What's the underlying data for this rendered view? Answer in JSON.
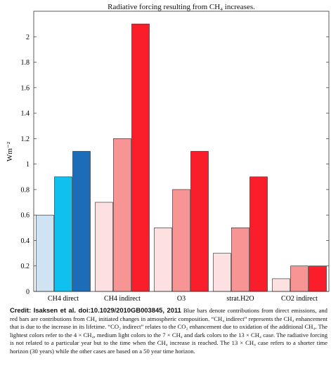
{
  "chart_data": {
    "type": "bar",
    "title": "Radiative forcing resulting from CH₄ increases.",
    "ylabel": "Wm⁻²",
    "xlabel": "",
    "categories": [
      "CH4 direct",
      "CH4 indirect",
      "O3",
      "strat.H2O",
      "CO2 indirect"
    ],
    "ylim": [
      0,
      2.2
    ],
    "yticks": [
      0,
      0.2,
      0.4,
      0.6,
      0.8,
      1,
      1.2,
      1.4,
      1.6,
      1.8,
      2
    ],
    "grid": false,
    "bars": [
      {
        "category": "CH4 direct",
        "values": [
          0.6,
          0.9,
          1.1
        ],
        "colors": [
          "#cfe3f2",
          "#10c0ee",
          "#1d6cb8"
        ]
      },
      {
        "category": "CH4 indirect",
        "values": [
          0.7,
          1.2,
          2.1
        ],
        "colors": [
          "#fde0e0",
          "#f79494",
          "#fa1e2b"
        ]
      },
      {
        "category": "O3",
        "values": [
          0.5,
          0.8,
          1.1
        ],
        "colors": [
          "#fde0e0",
          "#f79494",
          "#fa1e2b"
        ]
      },
      {
        "category": "strat.H2O",
        "values": [
          0.3,
          0.5,
          0.9
        ],
        "colors": [
          "#fde0e0",
          "#f79494",
          "#fa1e2b"
        ]
      },
      {
        "category": "CO2 indirect",
        "values": [
          0.1,
          0.2,
          0.2
        ],
        "colors": [
          "#fde0e0",
          "#f79494",
          "#fa1e2b"
        ]
      }
    ]
  },
  "caption": {
    "credit": "Credit:  Isaksen et al.  doi:10.1029/2010GB003845, 2011",
    "text": "Blue bars denote contributions from direct emissions, and red bars are contributions from CH₄ initiated changes in atmospheric composition. “CH₄ indirect” represents the CH₄ enhancement that is due to the increase in its lifetime. “CO₂ indirect” relates to the CO₂ enhancement due to oxidation of the additional CH₄. The lightest colors refer to the 4 × CH₄, medium light colors to the 7 × CH₄ and dark colors to the 13 × CH₄ case. The radiative forcing is not related to a particular year but to the time when the CH₄ increase is reached. The 13 × CH₄ case refers to a shorter time horizon (30 years) while the other cases are based on a 50 year time horizon."
  }
}
